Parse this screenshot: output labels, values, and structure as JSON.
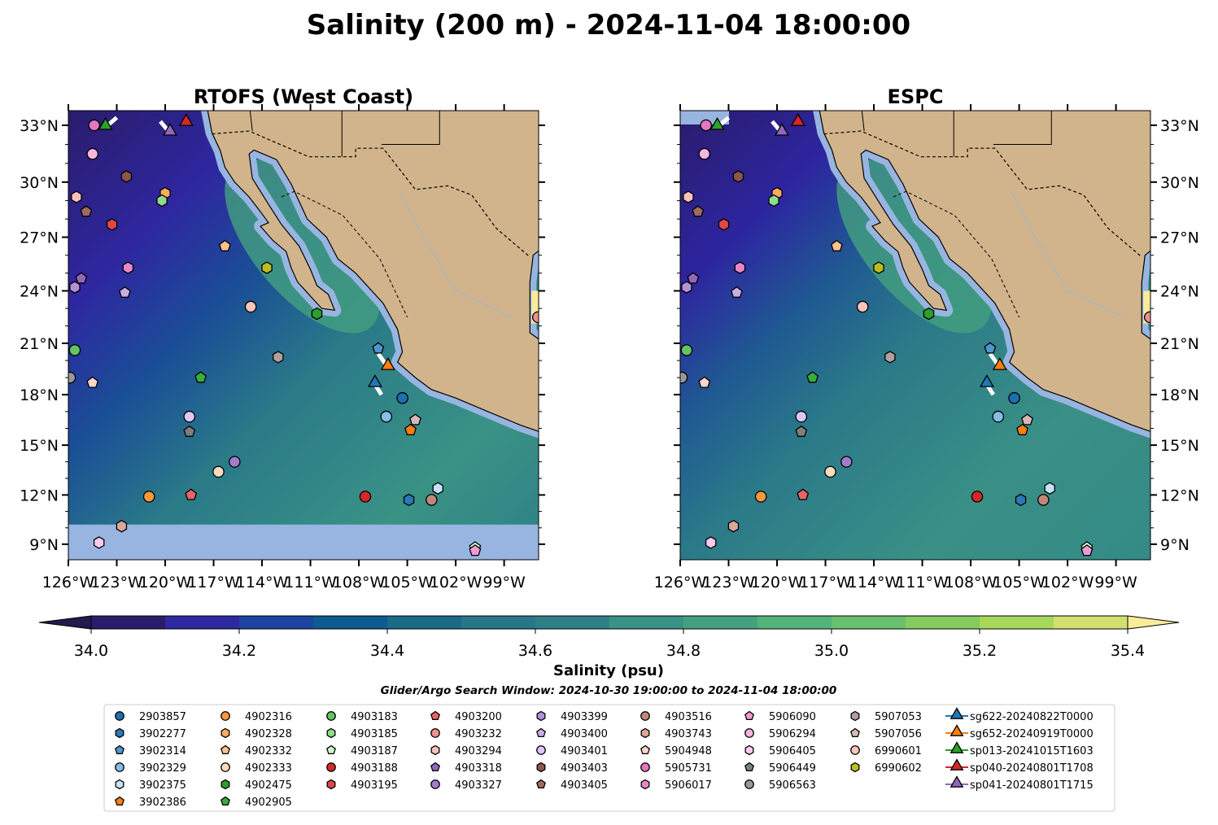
{
  "title": "Salinity (200 m) - 2024-11-04 18:00:00",
  "chart_data": {
    "type": "heatmap",
    "panels": [
      {
        "title": "RTOFS (West Coast)",
        "lat_labels_side": "left",
        "nan_band_below_lat": 10.2
      },
      {
        "title": "ESPC",
        "lat_labels_side": "right"
      }
    ],
    "extent": {
      "lon": [
        -126,
        -96.9
      ],
      "lat": [
        8.1,
        33.8
      ]
    },
    "lon_ticks": [
      -126,
      -123,
      -120,
      -117,
      -114,
      -111,
      -108,
      -105,
      -102,
      -99
    ],
    "lon_tick_labels": [
      "126°W",
      "123°W",
      "120°W",
      "117°W",
      "114°W",
      "111°W",
      "108°W",
      "105°W",
      "102°W",
      "99°W"
    ],
    "lat_ticks": [
      33,
      30,
      27,
      24,
      21,
      18,
      15,
      12,
      9
    ],
    "lat_tick_labels": [
      "33°N",
      "30°N",
      "27°N",
      "24°N",
      "21°N",
      "18°N",
      "15°N",
      "12°N",
      "9°N"
    ],
    "colorbar": {
      "label": "Salinity (psu)",
      "levels": [
        34.0,
        34.1,
        34.2,
        34.3,
        34.4,
        34.5,
        34.6,
        34.7,
        34.8,
        34.9,
        35.0,
        35.1,
        35.2,
        35.3,
        35.4
      ],
      "colors": [
        "#2a1c6b",
        "#2e29a0",
        "#1a44a0",
        "#0f5a90",
        "#1a6a88",
        "#277689",
        "#2f8086",
        "#3a9285",
        "#44a07f",
        "#52b47a",
        "#69c06e",
        "#85cc60",
        "#a7d85a",
        "#d3e070"
      ],
      "under_color": "#231a4e",
      "over_color": "#fcec9a",
      "ticks": [
        34.0,
        34.2,
        34.4,
        34.6,
        34.8,
        35.0,
        35.2,
        35.4
      ],
      "tick_labels": [
        "34.0",
        "34.2",
        "34.4",
        "34.6",
        "34.8",
        "35.0",
        "35.2",
        "35.4"
      ]
    },
    "search_window": "Glider/Argo Search Window: 2024-10-30 19:00:00 to 2024-11-04 18:00:00",
    "floats": [
      {
        "id": "2903857",
        "shape": "circle",
        "color": "#1f6fb0",
        "lon": -105.3,
        "lat": 17.8
      },
      {
        "id": "3902277",
        "shape": "hexagon",
        "color": "#2a78b4",
        "lon": -104.9,
        "lat": 11.7
      },
      {
        "id": "3902314",
        "shape": "pentagon",
        "color": "#4f95d0",
        "lon": -106.8,
        "lat": 20.7
      },
      {
        "id": "3902329",
        "shape": "circle",
        "color": "#85bde6",
        "lon": -106.3,
        "lat": 16.7
      },
      {
        "id": "3902375",
        "shape": "hexagon",
        "color": "#c4e2f7",
        "lon": -103.1,
        "lat": 12.4
      },
      {
        "id": "3902386",
        "shape": "pentagon",
        "color": "#ff7f0e",
        "lon": -104.8,
        "lat": 15.9
      },
      {
        "id": "4902316",
        "shape": "circle",
        "color": "#ff9a3c",
        "lon": -121.0,
        "lat": 11.9
      },
      {
        "id": "4902328",
        "shape": "hexagon",
        "color": "#ffab60",
        "lon": -120.0,
        "lat": 29.4
      },
      {
        "id": "4902332",
        "shape": "pentagon",
        "color": "#ffc28f",
        "lon": -116.3,
        "lat": 26.5
      },
      {
        "id": "4902333",
        "shape": "circle",
        "color": "#ffdcbc",
        "lon": -116.7,
        "lat": 13.4
      },
      {
        "id": "4902475",
        "shape": "hexagon",
        "color": "#2ca02c",
        "lon": -110.6,
        "lat": 22.7
      },
      {
        "id": "4902905",
        "shape": "pentagon",
        "color": "#3aad3a",
        "lon": -117.8,
        "lat": 19.0
      },
      {
        "id": "4903183",
        "shape": "circle",
        "color": "#62c462",
        "lon": -125.6,
        "lat": 20.6
      },
      {
        "id": "4903185",
        "shape": "hexagon",
        "color": "#8fdc8f",
        "lon": -120.2,
        "lat": 29.0
      },
      {
        "id": "4903187",
        "shape": "pentagon",
        "color": "#c8f5c8",
        "lon": -100.8,
        "lat": 8.8
      },
      {
        "id": "4903188",
        "shape": "circle",
        "color": "#d62728",
        "lon": -107.6,
        "lat": 11.9
      },
      {
        "id": "4903195",
        "shape": "hexagon",
        "color": "#e04646",
        "lon": -123.3,
        "lat": 27.7
      },
      {
        "id": "4903200",
        "shape": "pentagon",
        "color": "#e86464",
        "lon": -118.4,
        "lat": 12.0
      },
      {
        "id": "4903232",
        "shape": "circle",
        "color": "#f09090",
        "lon": -96.9,
        "lat": 22.5
      },
      {
        "id": "4903294",
        "shape": "hexagon",
        "color": "#f8c0c0",
        "lon": -125.5,
        "lat": 29.2
      },
      {
        "id": "4903318",
        "shape": "pentagon",
        "color": "#9467bd",
        "lon": -125.2,
        "lat": 24.7
      },
      {
        "id": "4903327",
        "shape": "circle",
        "color": "#a07ccb",
        "lon": -115.7,
        "lat": 14.0
      },
      {
        "id": "4903399",
        "shape": "hexagon",
        "color": "#b391d6",
        "lon": -125.6,
        "lat": 24.2
      },
      {
        "id": "4903400",
        "shape": "pentagon",
        "color": "#c9aee6",
        "lon": -122.5,
        "lat": 23.9
      },
      {
        "id": "4903401",
        "shape": "circle",
        "color": "#ddc7f5",
        "lon": -118.5,
        "lat": 16.7
      },
      {
        "id": "4903403",
        "shape": "hexagon",
        "color": "#8c564b",
        "lon": -122.4,
        "lat": 30.3
      },
      {
        "id": "4903405",
        "shape": "pentagon",
        "color": "#a06a5f",
        "lon": -124.9,
        "lat": 28.4
      },
      {
        "id": "4903516",
        "shape": "circle",
        "color": "#c08878",
        "lon": -103.5,
        "lat": 11.7
      },
      {
        "id": "4903743",
        "shape": "hexagon",
        "color": "#d8a898",
        "lon": -122.7,
        "lat": 10.1
      },
      {
        "id": "5904948",
        "shape": "pentagon",
        "color": "#fcd5cc",
        "lon": -124.5,
        "lat": 18.7
      },
      {
        "id": "5905731",
        "shape": "circle",
        "color": "#e377c2",
        "lon": -124.4,
        "lat": 33.0
      },
      {
        "id": "5906017",
        "shape": "hexagon",
        "color": "#e887c8",
        "lon": -122.3,
        "lat": 25.3
      },
      {
        "id": "5906090",
        "shape": "pentagon",
        "color": "#f29ad4",
        "lon": -100.8,
        "lat": 8.6
      },
      {
        "id": "5906294",
        "shape": "circle",
        "color": "#f7b6e0",
        "lon": -124.5,
        "lat": 31.5
      },
      {
        "id": "5906405",
        "shape": "hexagon",
        "color": "#fccaef",
        "lon": -124.1,
        "lat": 9.1
      },
      {
        "id": "5906449",
        "shape": "pentagon",
        "color": "#7f7f7f",
        "lon": -118.5,
        "lat": 15.8
      },
      {
        "id": "5906563",
        "shape": "circle",
        "color": "#999999",
        "lon": -125.9,
        "lat": 19.0
      },
      {
        "id": "5907053",
        "shape": "hexagon",
        "color": "#b0a0a0",
        "lon": -113.0,
        "lat": 20.2
      },
      {
        "id": "5907056",
        "shape": "pentagon",
        "color": "#d8b8b8",
        "lon": -104.5,
        "lat": 16.5
      },
      {
        "id": "6990601",
        "shape": "circle",
        "color": "#fbc4bc",
        "lon": -114.7,
        "lat": 23.1
      },
      {
        "id": "6990602",
        "shape": "hexagon",
        "color": "#bcbd22",
        "lon": -113.7,
        "lat": 25.3
      }
    ],
    "gliders": [
      {
        "id": "sg622-20240822T0000",
        "color": "#1f77b4",
        "lon": -107.0,
        "lat": 18.6,
        "trail_to": [
          -106.6,
          18.0
        ]
      },
      {
        "id": "sg652-20240919T0000",
        "color": "#ff7f0e",
        "lon": -106.2,
        "lat": 19.6,
        "trail_to": [
          -106.8,
          20.4
        ]
      },
      {
        "id": "sp013-20241015T1603",
        "color": "#2ca02c",
        "lon": -123.7,
        "lat": 32.9,
        "trail_to": [
          -123.0,
          33.4
        ]
      },
      {
        "id": "sp040-20240801T1708",
        "color": "#d62728",
        "lon": -118.7,
        "lat": 33.1,
        "trail_to": [
          -118.7,
          33.1
        ]
      },
      {
        "id": "sp041-20240801T1715",
        "color": "#9467bd",
        "lon": -119.7,
        "lat": 32.6,
        "trail_to": [
          -120.3,
          33.2
        ]
      }
    ]
  }
}
